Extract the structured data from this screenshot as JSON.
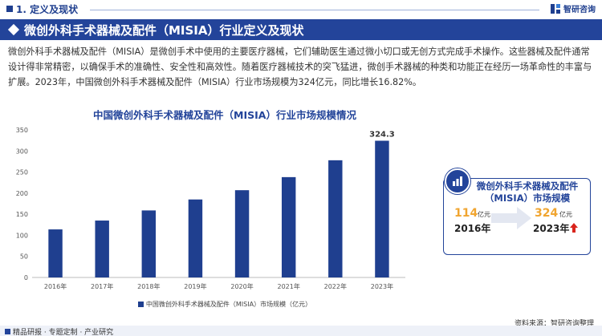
{
  "header": {
    "section_title": "1. 定义及现状",
    "logo_text": "智研咨询"
  },
  "banner": {
    "title": "微创外科手术器械及配件（MISIA）行业定义及现状"
  },
  "description": "微创外科手术器械及配件（MISIA）是微创手术中使用的主要医疗器械，它们辅助医生通过微小切口或无创方式完成手术操作。这些器械及配件通常设计得非常精密，以确保手术的准确性、安全性和高效性。随着医疗器械技术的突飞猛进，微创手术器械的种类和功能正在经历一场革命性的丰富与扩展。2023年，中国微创外科手术器械及配件（MISIA）行业市场规模为324亿元，同比增长16.82%。",
  "chart_data": {
    "type": "bar",
    "title": "中国微创外科手术器械及配件（MISIA）行业市场规模情况",
    "categories": [
      "2016年",
      "2017年",
      "2018年",
      "2019年",
      "2020年",
      "2021年",
      "2022年",
      "2023年"
    ],
    "series": [
      {
        "name": "中国微创外科手术器械及配件（MISIA）市场规模（亿元）",
        "values": [
          114,
          135,
          159,
          185,
          207,
          238,
          278,
          324.3
        ],
        "color": "#1f3f8f"
      }
    ],
    "data_labels": {
      "2023年": "324.3"
    },
    "ylim": [
      0,
      350
    ],
    "yticks": [
      0,
      50,
      100,
      150,
      200,
      250,
      300,
      350
    ],
    "grid": false,
    "legend_position": "bottom"
  },
  "card": {
    "title": "微创外科手术器械及配件（MISIA）市场规模",
    "start_value": "114",
    "start_unit": "亿元",
    "start_year": "2016年",
    "end_value": "324",
    "end_unit": "亿元",
    "end_year": "2023年",
    "accent_color": "#f0a530"
  },
  "source": "资料来源：智研咨询整理",
  "footer": {
    "text": "精品研报 · 专题定制 · 产业研究"
  }
}
